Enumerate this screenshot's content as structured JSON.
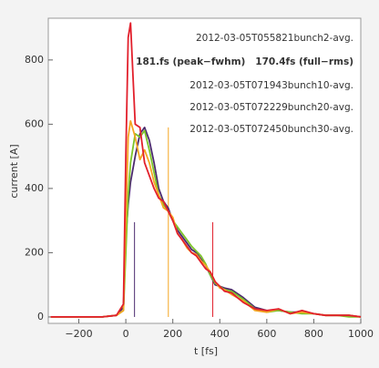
{
  "chart_data": {
    "type": "line",
    "x_label": "t [fs]",
    "y_label": "current [A]",
    "x": [
      -320,
      -200,
      -100,
      -40,
      -10,
      0,
      10,
      20,
      40,
      60,
      80,
      100,
      120,
      140,
      160,
      180,
      200,
      220,
      240,
      260,
      280,
      300,
      320,
      340,
      360,
      380,
      400,
      420,
      450,
      500,
      550,
      600,
      650,
      700,
      750,
      800,
      850,
      900,
      950,
      1000
    ],
    "series": [
      {
        "name": "2012-03-05T055821bunch2-avg.",
        "color": "#4b2a6e",
        "values": [
          0,
          0,
          0,
          5,
          30,
          250,
          350,
          420,
          500,
          570,
          590,
          550,
          480,
          400,
          360,
          340,
          300,
          270,
          250,
          230,
          210,
          200,
          180,
          160,
          130,
          100,
          95,
          90,
          85,
          60,
          30,
          20,
          20,
          15,
          15,
          10,
          5,
          5,
          5,
          0
        ]
      },
      {
        "name": "2012-03-05T071943bunch10-avg.",
        "color": "#7cc42a",
        "values": [
          0,
          0,
          0,
          5,
          20,
          200,
          380,
          480,
          570,
          560,
          580,
          520,
          450,
          380,
          350,
          330,
          300,
          280,
          260,
          240,
          220,
          205,
          190,
          165,
          130,
          105,
          95,
          85,
          80,
          55,
          25,
          15,
          20,
          15,
          10,
          10,
          5,
          5,
          0,
          0
        ]
      },
      {
        "name": "2012-03-05T072229bunch20-avg.",
        "color": "#f5a623",
        "values": [
          0,
          0,
          0,
          5,
          20,
          300,
          560,
          610,
          560,
          490,
          520,
          480,
          420,
          380,
          340,
          330,
          310,
          260,
          240,
          215,
          200,
          195,
          175,
          160,
          140,
          110,
          90,
          85,
          70,
          50,
          20,
          15,
          25,
          10,
          15,
          10,
          5,
          5,
          5,
          0
        ]
      },
      {
        "name": "2012-03-05T072450bunch30-avg.",
        "color": "#e2202c",
        "values": [
          0,
          0,
          0,
          5,
          40,
          500,
          870,
          915,
          600,
          590,
          480,
          440,
          400,
          370,
          360,
          330,
          300,
          260,
          240,
          220,
          200,
          190,
          170,
          150,
          140,
          110,
          95,
          80,
          75,
          45,
          25,
          20,
          25,
          10,
          20,
          10,
          5,
          5,
          5,
          0
        ]
      }
    ],
    "annotation": "181.fs (peak−fwhm)   170.4fs (full−rms)",
    "annotation_color": "#4b2a6e",
    "vlines": [
      {
        "x": 37,
        "height": 295,
        "color": "#4b2a6e"
      },
      {
        "x": 181,
        "height": 590,
        "color": "#f5a623"
      },
      {
        "x": 370,
        "height": 295,
        "color": "#e2202c"
      }
    ],
    "xlim": [
      -330,
      1000
    ],
    "ylim": [
      -20,
      930
    ],
    "xticks": [
      {
        "value": -200,
        "label": "−200"
      },
      0,
      200,
      400,
      600,
      800,
      1000
    ],
    "yticks": [
      0,
      200,
      400,
      600,
      800
    ]
  }
}
